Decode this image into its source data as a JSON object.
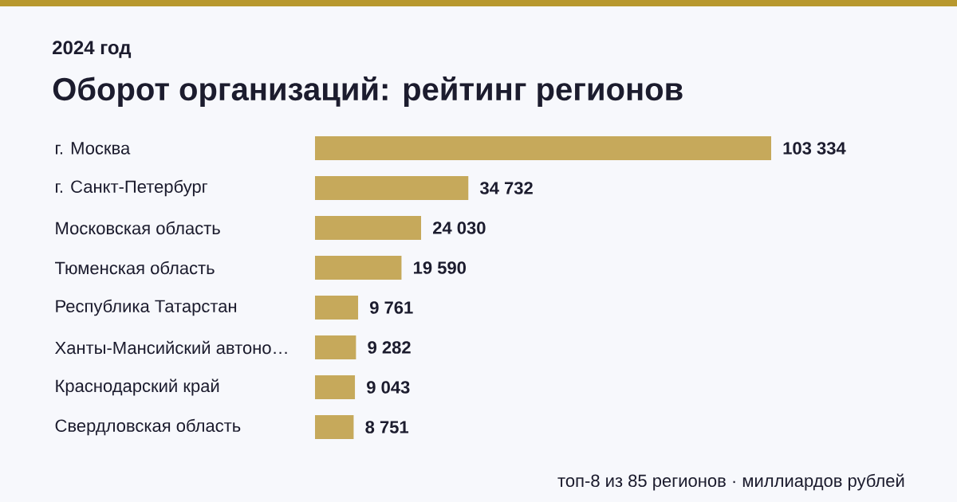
{
  "chart_data": {
    "type": "bar",
    "orientation": "horizontal",
    "subtitle": "2024 год",
    "title": "Оборот организаций: рейтинг регионов",
    "categories": [
      "г. Москва",
      "г. Санкт-Петербург",
      "Московская область",
      "Тюменская область",
      "Республика Татарстан",
      "Ханты-Мансийский автоно…",
      "Краснодарский край",
      "Свердловская область"
    ],
    "values": [
      103334,
      34732,
      24030,
      19590,
      9761,
      9282,
      9043,
      8751
    ],
    "value_labels": [
      "103 334",
      "34 732",
      "24 030",
      "19 590",
      "9 761",
      "9 282",
      "9 043",
      "8 751"
    ],
    "color": "#c6a95b",
    "annotations": [
      "топ-8 из 85 регионов · миллиардов рублей"
    ]
  }
}
